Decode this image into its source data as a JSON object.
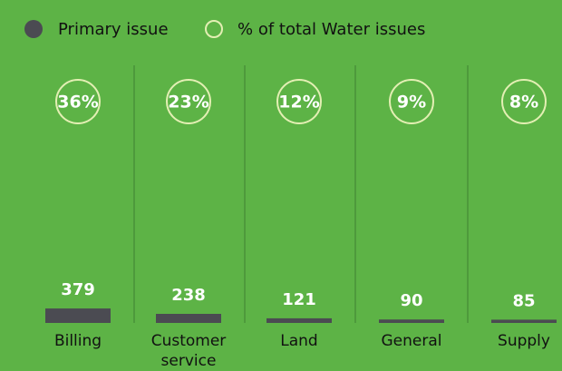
{
  "chart_data": {
    "type": "bar",
    "categories": [
      "Billing",
      "Customer service",
      "Land",
      "General",
      "Supply"
    ],
    "series": [
      {
        "name": "Primary issue",
        "color": "#4b4b52",
        "values": [
          379,
          238,
          121,
          90,
          85
        ]
      },
      {
        "name": "% of total Water issues",
        "color": "#e3efb3",
        "values": [
          36,
          23,
          12,
          9,
          8
        ],
        "value_labels": [
          "36%",
          "23%",
          "12%",
          "9%",
          "8%"
        ]
      }
    ]
  }
}
